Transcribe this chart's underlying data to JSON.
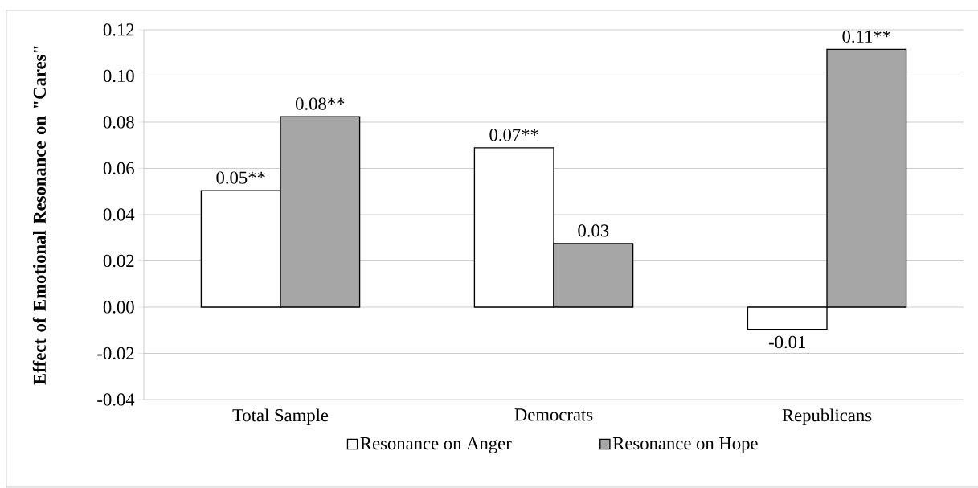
{
  "chart_data": {
    "type": "bar",
    "ylabel": "Effect of Emotional Resonance on \"Cares\"",
    "categories": [
      "Total Sample",
      "Democrats",
      "Republicans"
    ],
    "series": [
      {
        "name": "Resonance on Anger",
        "color": "#ffffff",
        "values": [
          0.0504,
          0.0689,
          -0.0096
        ],
        "value_labels": [
          "0.05**",
          "0.07**",
          "-0.01"
        ]
      },
      {
        "name": "Resonance on Hope",
        "color": "#a6a6a6",
        "values": [
          0.0824,
          0.0275,
          0.1115
        ],
        "value_labels": [
          "0.08**",
          "0.03",
          "0.11**"
        ]
      }
    ],
    "ylim": [
      -0.04,
      0.12
    ],
    "yticks": [
      {
        "value": -0.04,
        "label": "-0.04"
      },
      {
        "value": -0.02,
        "label": "-0.02"
      },
      {
        "value": 0,
        "label": "0.00"
      },
      {
        "value": 0.02,
        "label": "0.02"
      },
      {
        "value": 0.04,
        "label": "0.04"
      },
      {
        "value": 0.06,
        "label": "0.06"
      },
      {
        "value": 0.08,
        "label": "0.08"
      },
      {
        "value": 0.1,
        "label": "0.10"
      },
      {
        "value": 0.12,
        "label": "0.12"
      }
    ],
    "grid": "y",
    "legend": "bottom"
  }
}
